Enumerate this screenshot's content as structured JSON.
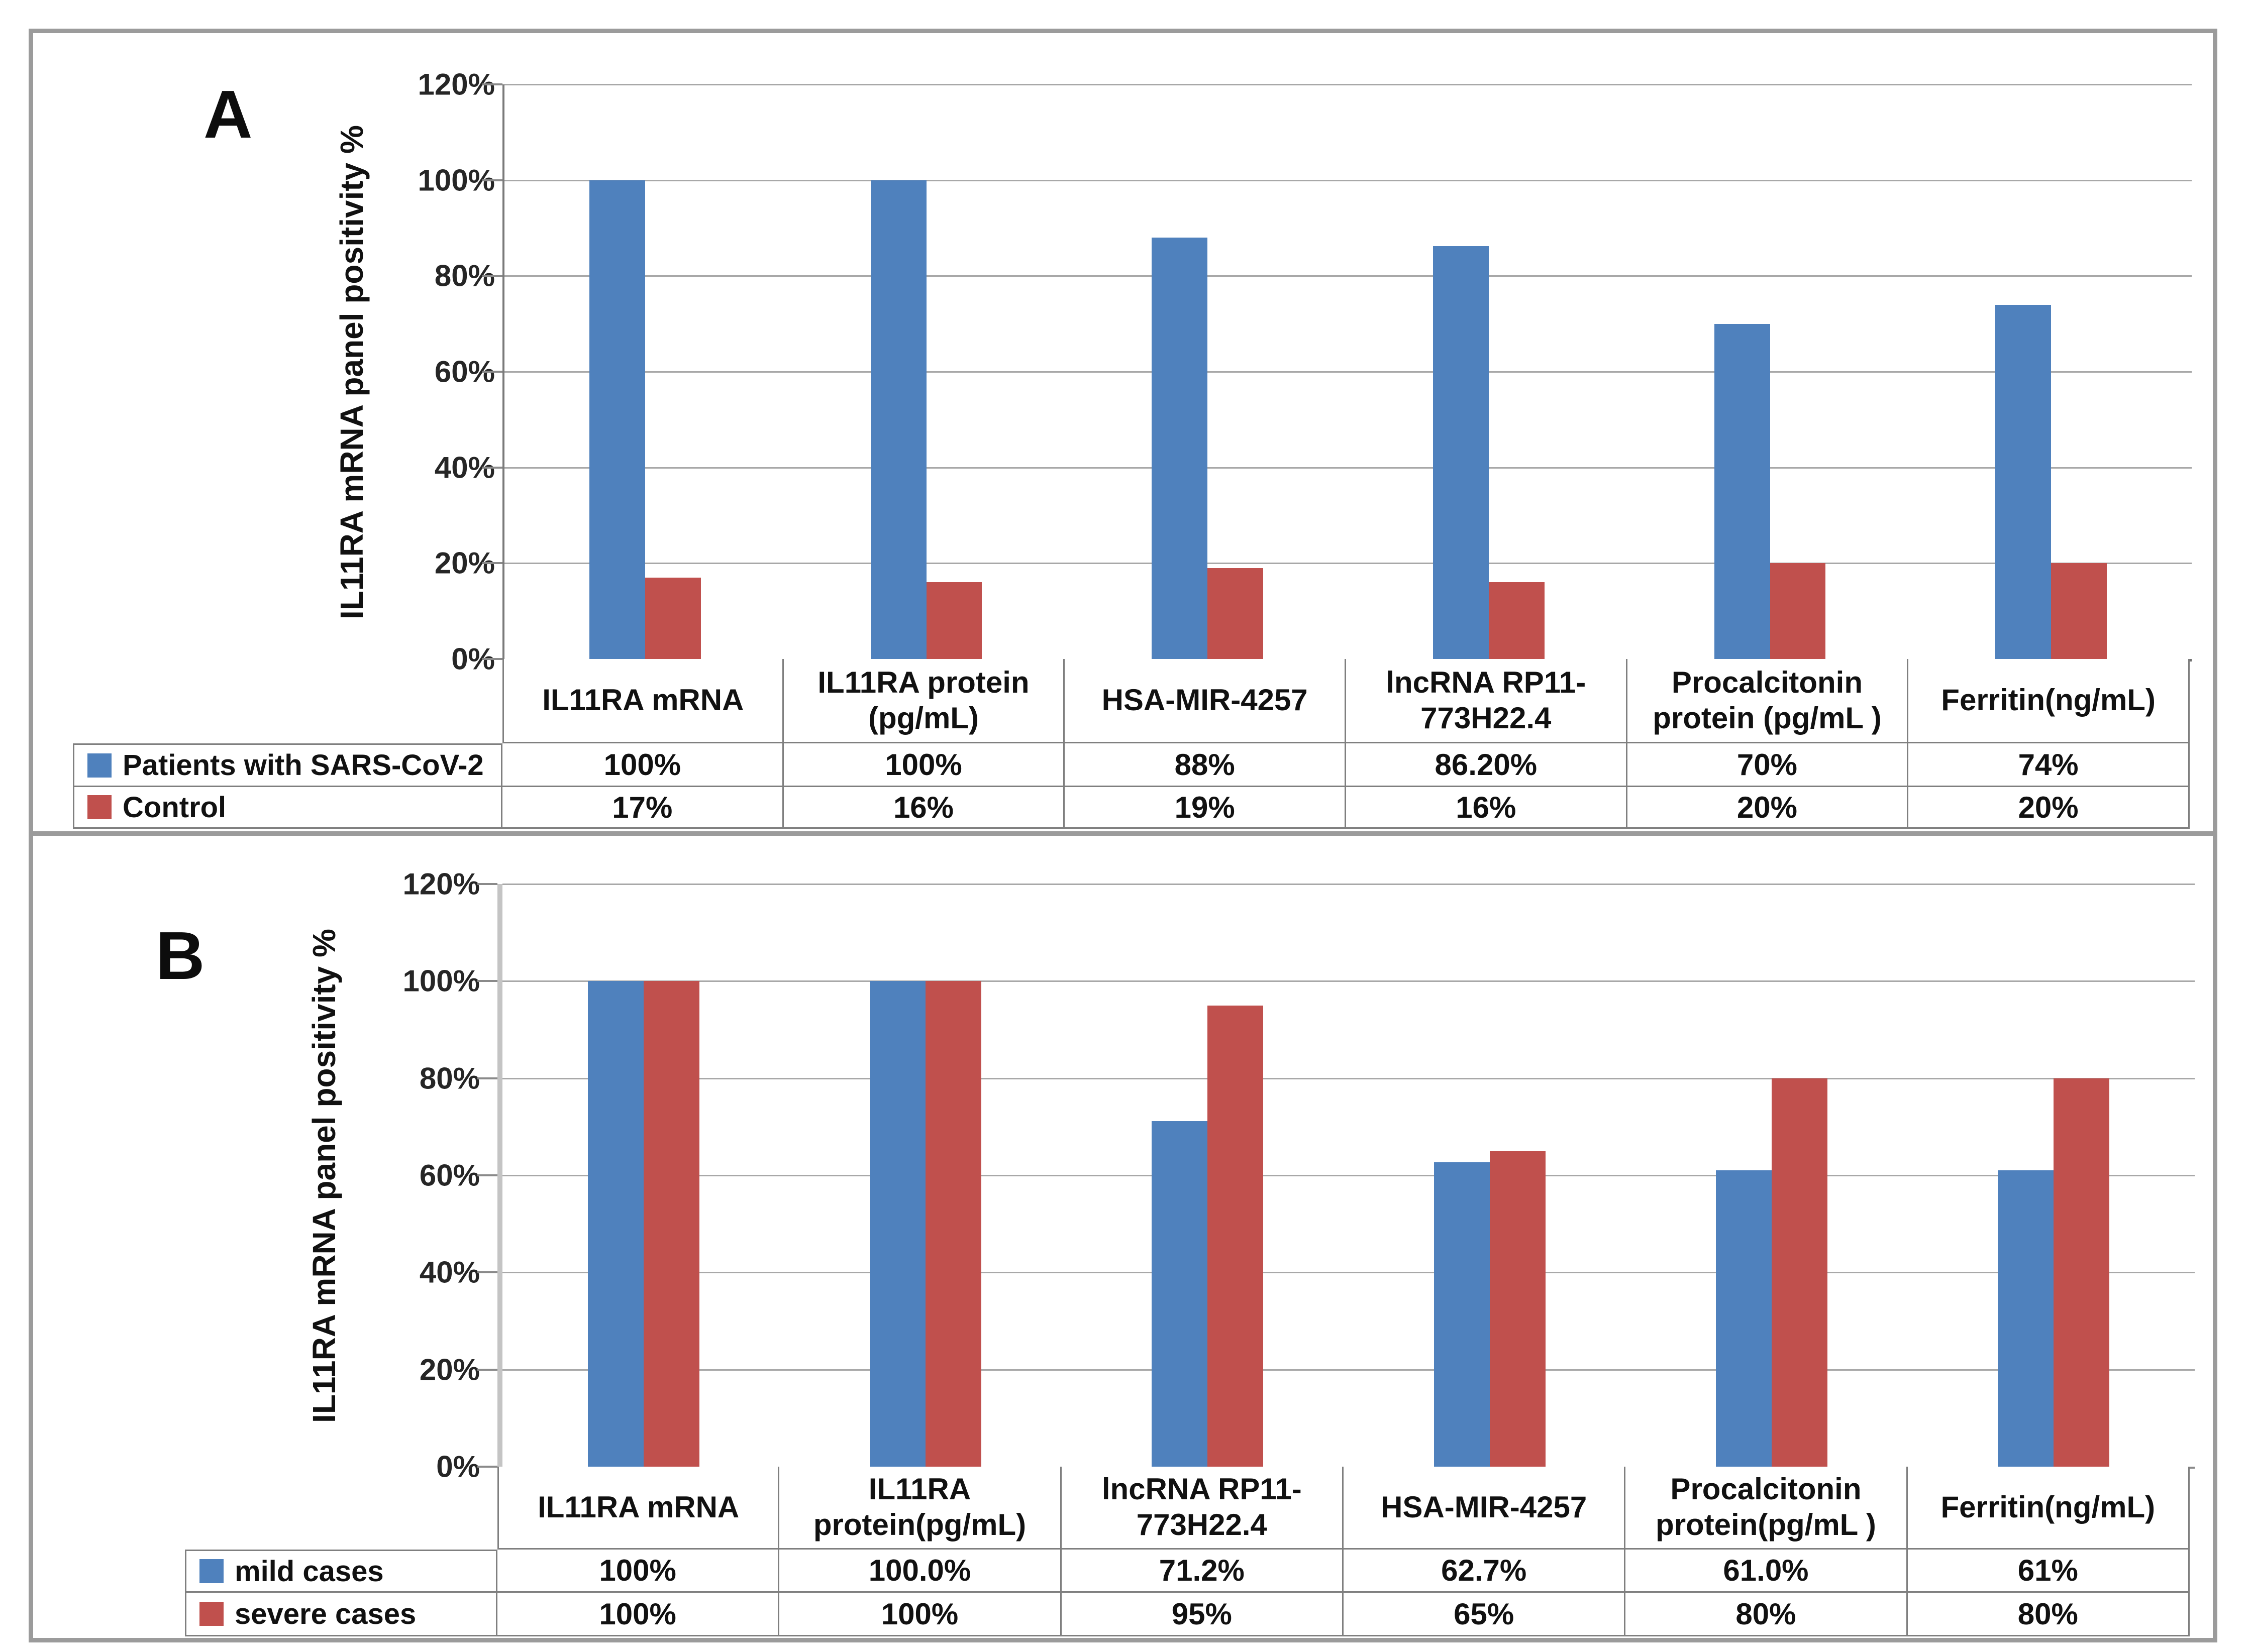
{
  "figure": {
    "panels": [
      {
        "label": "A",
        "y_axis_title": "IL11RA mRNA panel positivity %",
        "y_ticks": [
          "120%",
          "100%",
          "80%",
          "60%",
          "40%",
          "20%",
          "0%"
        ],
        "headers": [
          "IL11RA mRNA",
          "IL11RA protein\n(pg/mL)",
          "HSA-MIR-4257",
          "lncRNA RP11-\n773H22.4",
          "Procalcitonin\nprotein (pg/mL )",
          "Ferritin(ng/mL)"
        ],
        "series": [
          {
            "name": "Patients with SARS-CoV-2",
            "color": "#4F81BD",
            "display": [
              "100%",
              "100%",
              "88%",
              "86.20%",
              "70%",
              "74%"
            ]
          },
          {
            "name": "Control",
            "color": "#C0504D",
            "display": [
              "17%",
              "16%",
              "19%",
              "16%",
              "20%",
              "20%"
            ]
          }
        ]
      },
      {
        "label": "B",
        "y_axis_title": "IL11RA mRNA panel positivity %",
        "y_ticks": [
          "120%",
          "100%",
          "80%",
          "60%",
          "40%",
          "20%",
          "0%"
        ],
        "headers": [
          "IL11RA mRNA",
          "IL11RA\nprotein(pg/mL)",
          "lncRNA RP11-\n773H22.4",
          "HSA-MIR-4257",
          "Procalcitonin\nprotein(pg/mL )",
          "Ferritin(ng/mL)"
        ],
        "series": [
          {
            "name": "mild cases",
            "color": "#4F81BD",
            "display": [
              "100%",
              "100.0%",
              "71.2%",
              "62.7%",
              "61.0%",
              "61%"
            ]
          },
          {
            "name": "severe cases",
            "color": "#C0504D",
            "display": [
              "100%",
              "100%",
              "95%",
              "65%",
              "80%",
              "80%"
            ]
          }
        ]
      }
    ]
  },
  "chart_data": [
    {
      "type": "bar",
      "title": "A",
      "categories": [
        "IL11RA mRNA",
        "IL11RA protein (pg/mL)",
        "HSA-MIR-4257",
        "lncRNA RP11-773H22.4",
        "Procalcitonin protein (pg/mL )",
        "Ferritin(ng/mL)"
      ],
      "series": [
        {
          "name": "Patients with SARS-CoV-2",
          "values": [
            100,
            100,
            88,
            86.2,
            70,
            74
          ]
        },
        {
          "name": "Control",
          "values": [
            17,
            16,
            19,
            16,
            20,
            20
          ]
        }
      ],
      "xlabel": "",
      "ylabel": "IL11RA mRNA panel positivity %",
      "ylim": [
        0,
        120
      ],
      "ytick_step": 20,
      "grid": true,
      "legend_position": "table-left",
      "colors": [
        "#4F81BD",
        "#C0504D"
      ]
    },
    {
      "type": "bar",
      "title": "B",
      "categories": [
        "IL11RA mRNA",
        "IL11RA protein(pg/mL)",
        "lncRNA RP11-773H22.4",
        "HSA-MIR-4257",
        "Procalcitonin protein(pg/mL )",
        "Ferritin(ng/mL)"
      ],
      "series": [
        {
          "name": "mild cases",
          "values": [
            100,
            100,
            71.2,
            62.7,
            61,
            61
          ]
        },
        {
          "name": "severe cases",
          "values": [
            100,
            100,
            95,
            65,
            80,
            80
          ]
        }
      ],
      "xlabel": "",
      "ylabel": "IL11RA mRNA panel positivity %",
      "ylim": [
        0,
        120
      ],
      "ytick_step": 20,
      "grid": true,
      "legend_position": "table-left",
      "colors": [
        "#4F81BD",
        "#C0504D"
      ]
    }
  ]
}
